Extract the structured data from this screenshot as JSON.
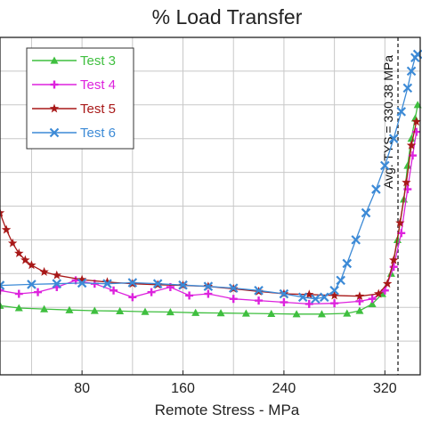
{
  "chart_data": {
    "type": "line",
    "title": "% Load Transfer",
    "xlabel": "Remote Stress - MPa",
    "ylabel": "",
    "xlim": [
      15,
      348
    ],
    "ylim": [
      0,
      100
    ],
    "x_ticks": [
      80,
      160,
      240,
      320
    ],
    "grid": true,
    "legend_position": "top-left",
    "annotation": {
      "text": "Avg. TYS = 330.38 MPa",
      "x": 330.38
    },
    "series": [
      {
        "name": "Test 3",
        "color": "#3fbf3f",
        "marker": "triangle",
        "x": [
          15,
          30,
          50,
          70,
          90,
          110,
          130,
          150,
          170,
          190,
          210,
          230,
          250,
          270,
          290,
          300,
          310,
          318,
          325,
          330,
          335,
          338,
          341,
          344,
          346
        ],
        "y": [
          20.5,
          19.8,
          19.5,
          19.2,
          19.0,
          18.9,
          18.7,
          18.6,
          18.4,
          18.3,
          18.2,
          18.1,
          18.0,
          18.0,
          18.2,
          19.0,
          21.0,
          24.0,
          30.0,
          40.0,
          52.0,
          62.0,
          70.0,
          76.0,
          80.0
        ]
      },
      {
        "name": "Test 4",
        "color": "#dd22dd",
        "marker": "plus",
        "x": [
          15,
          30,
          45,
          60,
          75,
          90,
          105,
          120,
          135,
          150,
          165,
          180,
          200,
          220,
          240,
          260,
          280,
          300,
          310,
          320,
          327,
          333,
          338,
          342,
          345
        ],
        "y": [
          25.0,
          24.0,
          24.5,
          26.0,
          28.0,
          27.0,
          25.0,
          23.0,
          24.5,
          26.0,
          23.5,
          24.0,
          22.5,
          22.0,
          21.5,
          21.0,
          21.2,
          21.8,
          22.5,
          25.0,
          32.0,
          42.0,
          55.0,
          65.0,
          72.0
        ]
      },
      {
        "name": "Test 5",
        "color": "#a81818",
        "marker": "star",
        "x": [
          15,
          20,
          25,
          30,
          35,
          40,
          50,
          60,
          80,
          100,
          120,
          140,
          160,
          180,
          200,
          220,
          240,
          260,
          280,
          300,
          315,
          322,
          327,
          332,
          337,
          341,
          345
        ],
        "y": [
          48.0,
          43.0,
          39.0,
          36.0,
          34.0,
          32.5,
          30.5,
          29.5,
          28.2,
          27.5,
          27.0,
          26.7,
          26.5,
          26.2,
          25.5,
          24.7,
          24.0,
          23.8,
          23.5,
          23.3,
          24.0,
          27.0,
          34.0,
          45.0,
          57.0,
          68.0,
          75.0
        ]
      },
      {
        "name": "Test 6",
        "color": "#3c8ad6",
        "marker": "x",
        "x": [
          15,
          40,
          60,
          80,
          100,
          120,
          140,
          160,
          180,
          200,
          220,
          240,
          255,
          265,
          272,
          280,
          285,
          290,
          297,
          305,
          313,
          320,
          327,
          333,
          338,
          341,
          344,
          346
        ],
        "y": [
          26.5,
          26.8,
          27.0,
          27.2,
          27.0,
          27.3,
          27.0,
          26.6,
          26.2,
          25.7,
          25.0,
          24.0,
          23.0,
          22.5,
          23.0,
          25.0,
          28.0,
          33.0,
          40.0,
          48.0,
          55.0,
          62.0,
          70.0,
          78.0,
          85.0,
          90.0,
          94.0,
          95.0
        ]
      }
    ]
  }
}
